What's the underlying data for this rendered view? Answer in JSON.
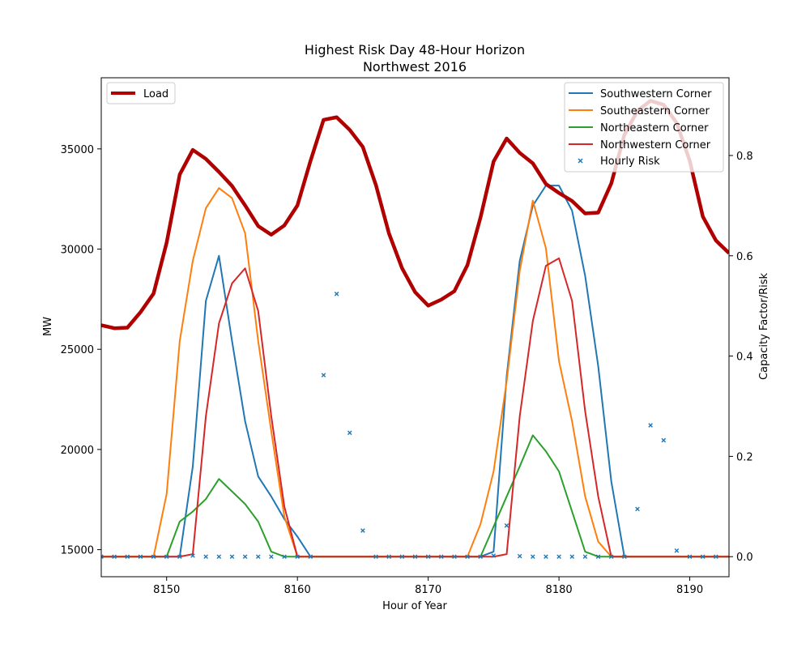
{
  "chart_data": {
    "type": "line",
    "title": "Highest Risk Day 48-Hour Horizon",
    "subtitle": "Northwest 2016",
    "xlabel": "Hour of Year",
    "ylabel_left": "MW",
    "ylabel_right": "Capacity Factor/Risk",
    "xlim": [
      8145,
      8193
    ],
    "ylim_left": [
      13650,
      38550
    ],
    "ylim_right": [
      -0.04,
      0.955
    ],
    "x_ticks": [
      8150,
      8160,
      8170,
      8180,
      8190
    ],
    "y_left_ticks": [
      15000,
      20000,
      25000,
      30000,
      35000
    ],
    "y_right_ticks": [
      "0.0",
      "0.2",
      "0.4",
      "0.6",
      "0.8"
    ],
    "y_right_tick_values": [
      0.0,
      0.2,
      0.4,
      0.6,
      0.8
    ],
    "x": [
      8145,
      8146,
      8147,
      8148,
      8149,
      8150,
      8151,
      8152,
      8153,
      8154,
      8155,
      8156,
      8157,
      8158,
      8159,
      8160,
      8161,
      8162,
      8163,
      8164,
      8165,
      8166,
      8167,
      8168,
      8169,
      8170,
      8171,
      8172,
      8173,
      8174,
      8175,
      8176,
      8177,
      8178,
      8179,
      8180,
      8181,
      8182,
      8183,
      8184,
      8185,
      8186,
      8187,
      8188,
      8189,
      8190,
      8191,
      8192,
      8193
    ],
    "load": {
      "name": "Load",
      "color": "#b10000",
      "axis": "left",
      "values": [
        26200,
        26050,
        26080,
        26850,
        27780,
        30320,
        33720,
        34950,
        34500,
        33850,
        33150,
        32180,
        31150,
        30720,
        31180,
        32180,
        34400,
        36450,
        36580,
        35950,
        35100,
        33200,
        30780,
        29050,
        27850,
        27180,
        27480,
        27900,
        29200,
        31580,
        34370,
        35520,
        34800,
        34280,
        33250,
        32800,
        32400,
        31780,
        31820,
        33280,
        35700,
        36900,
        37400,
        37200,
        36300,
        34400,
        31620,
        30430,
        29800
      ]
    },
    "series": [
      {
        "name": "Southwestern Corner",
        "color": "#1f77b4",
        "axis": "right",
        "values": [
          0,
          0,
          0,
          0,
          0,
          0,
          0,
          0.18,
          0.51,
          0.6,
          0.43,
          0.27,
          0.16,
          0.12,
          0.075,
          0.04,
          0,
          0,
          0,
          0,
          0,
          0,
          0,
          0,
          0,
          0,
          0,
          0,
          0,
          0,
          0.01,
          0.36,
          0.59,
          0.7,
          0.74,
          0.74,
          0.69,
          0.56,
          0.38,
          0.15,
          0,
          0,
          0,
          0,
          0,
          0,
          0,
          0,
          0
        ]
      },
      {
        "name": "Southeastern Corner",
        "color": "#ff7f0e",
        "axis": "right",
        "values": [
          0,
          0,
          0,
          0,
          0,
          0.125,
          0.43,
          0.59,
          0.695,
          0.735,
          0.715,
          0.645,
          0.43,
          0.25,
          0.08,
          0,
          0,
          0,
          0,
          0,
          0,
          0,
          0,
          0,
          0,
          0,
          0,
          0,
          0,
          0.065,
          0.17,
          0.35,
          0.57,
          0.71,
          0.615,
          0.39,
          0.27,
          0.12,
          0.03,
          0,
          0,
          0,
          0,
          0,
          0,
          0,
          0,
          0,
          0
        ]
      },
      {
        "name": "Northeastern Corner",
        "color": "#2ca02c",
        "axis": "right",
        "values": [
          0,
          0,
          0,
          0,
          0,
          0,
          0.07,
          0.09,
          0.115,
          0.155,
          0.13,
          0.105,
          0.07,
          0.01,
          0,
          0,
          0,
          0,
          0,
          0,
          0,
          0,
          0,
          0,
          0,
          0,
          0,
          0,
          0,
          0,
          0.06,
          0.12,
          0.18,
          0.242,
          0.21,
          0.17,
          0.09,
          0.01,
          0,
          0,
          0,
          0,
          0,
          0,
          0,
          0,
          0,
          0,
          0
        ]
      },
      {
        "name": "Northwestern Corner",
        "color": "#d62728",
        "axis": "right",
        "values": [
          0,
          0,
          0,
          0,
          0,
          0,
          0,
          0.005,
          0.28,
          0.465,
          0.545,
          0.575,
          0.49,
          0.28,
          0.1,
          0,
          0,
          0,
          0,
          0,
          0,
          0,
          0,
          0,
          0,
          0,
          0,
          0,
          0,
          0,
          0,
          0.005,
          0.28,
          0.47,
          0.58,
          0.595,
          0.51,
          0.29,
          0.12,
          0,
          0,
          0,
          0,
          0,
          0,
          0,
          0,
          0,
          0
        ]
      }
    ],
    "risk": {
      "name": "Hourly Risk",
      "color": "#1f77b4",
      "axis": "right",
      "x": [
        8145,
        8146,
        8147,
        8148,
        8149,
        8150,
        8151,
        8152,
        8153,
        8154,
        8155,
        8156,
        8157,
        8158,
        8159,
        8160,
        8161,
        8162,
        8163,
        8164,
        8165,
        8166,
        8167,
        8168,
        8169,
        8170,
        8171,
        8172,
        8173,
        8174,
        8175,
        8176,
        8177,
        8178,
        8179,
        8180,
        8181,
        8182,
        8183,
        8184,
        8185,
        8186,
        8187,
        8188,
        8189,
        8190,
        8191,
        8192
      ],
      "values": [
        0,
        0,
        0,
        0,
        0,
        0,
        0,
        0.002,
        0,
        0,
        0,
        0,
        0,
        0,
        0,
        0,
        0,
        0.362,
        0.524,
        0.247,
        0.052,
        0,
        0,
        0,
        0,
        0,
        0,
        0,
        0,
        0,
        0.002,
        0.062,
        0.001,
        0,
        0,
        0,
        0,
        0,
        0,
        0,
        0,
        0.095,
        0.262,
        0.232,
        0.012,
        0,
        0,
        0
      ]
    },
    "legend_left_position": "upper-left",
    "legend_right_position": "upper-right",
    "grid": false
  }
}
